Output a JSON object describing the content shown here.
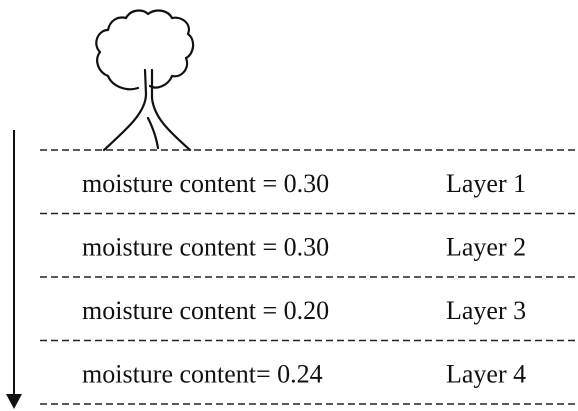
{
  "layers": [
    {
      "content": "moisture content = 0.30",
      "name": "Layer 1"
    },
    {
      "content": "moisture content = 0.30",
      "name": "Layer 2"
    },
    {
      "content": "moisture content = 0.20",
      "name": "Layer 3"
    },
    {
      "content": "moisture content= 0.24",
      "name": "Layer 4"
    }
  ]
}
